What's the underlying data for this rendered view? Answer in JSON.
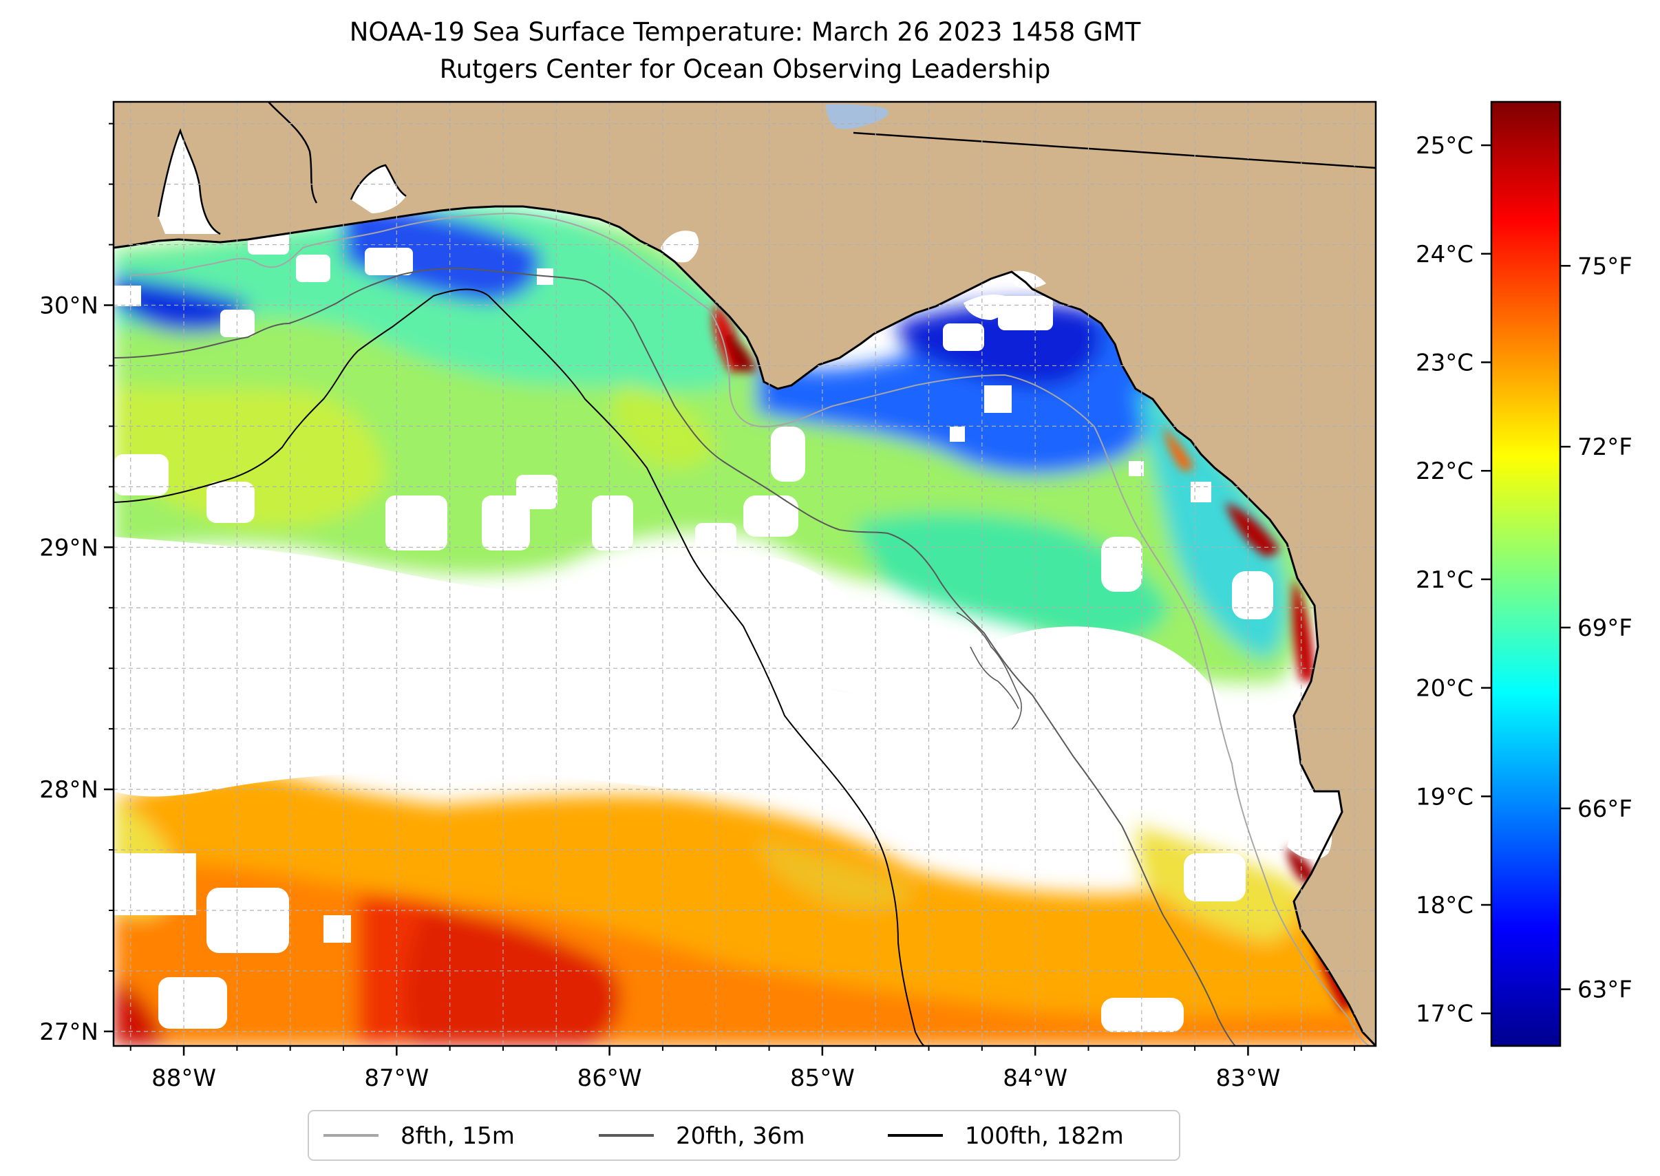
{
  "title": {
    "line1": "NOAA-19 Sea Surface Temperature: March 26 2023 1458 GMT",
    "line2": "Rutgers Center for Ocean Observing Leadership"
  },
  "map": {
    "lon_range": [
      -88.33,
      -82.4
    ],
    "lat_range": [
      26.94,
      30.84
    ],
    "lon_ticks": [
      {
        "value": -88,
        "label": "88°W"
      },
      {
        "value": -87,
        "label": "87°W"
      },
      {
        "value": -86,
        "label": "86°W"
      },
      {
        "value": -85,
        "label": "85°W"
      },
      {
        "value": -84,
        "label": "84°W"
      },
      {
        "value": -83,
        "label": "83°W"
      }
    ],
    "lat_ticks": [
      {
        "value": 30,
        "label": "30°N"
      },
      {
        "value": 29,
        "label": "29°N"
      },
      {
        "value": 28,
        "label": "28°N"
      },
      {
        "value": 27,
        "label": "27°N"
      }
    ],
    "grid_spacing_deg": 0.25,
    "colors": {
      "land": "#d2b48c",
      "no_data": "#ffffff",
      "grid": "#b0b0b0",
      "lake": "#a5bfdd"
    }
  },
  "colorbar": {
    "colormap": "jet",
    "range_c": [
      16.7,
      25.4
    ],
    "celsius_ticks": [
      {
        "value": 17,
        "label": "17°C"
      },
      {
        "value": 18,
        "label": "18°C"
      },
      {
        "value": 19,
        "label": "19°C"
      },
      {
        "value": 20,
        "label": "20°C"
      },
      {
        "value": 21,
        "label": "21°C"
      },
      {
        "value": 22,
        "label": "22°C"
      },
      {
        "value": 23,
        "label": "23°C"
      },
      {
        "value": 24,
        "label": "24°C"
      },
      {
        "value": 25,
        "label": "25°C"
      }
    ],
    "fahrenheit_ticks": [
      {
        "value": 63,
        "label": "63°F"
      },
      {
        "value": 66,
        "label": "66°F"
      },
      {
        "value": 69,
        "label": "69°F"
      },
      {
        "value": 72,
        "label": "72°F"
      },
      {
        "value": 75,
        "label": "75°F"
      }
    ]
  },
  "legend": {
    "items": [
      {
        "label": "8fth, 15m",
        "color": "#a6a6a6"
      },
      {
        "label": "20fth, 36m",
        "color": "#595959"
      },
      {
        "label": "100fth, 182m",
        "color": "#000000"
      }
    ]
  }
}
